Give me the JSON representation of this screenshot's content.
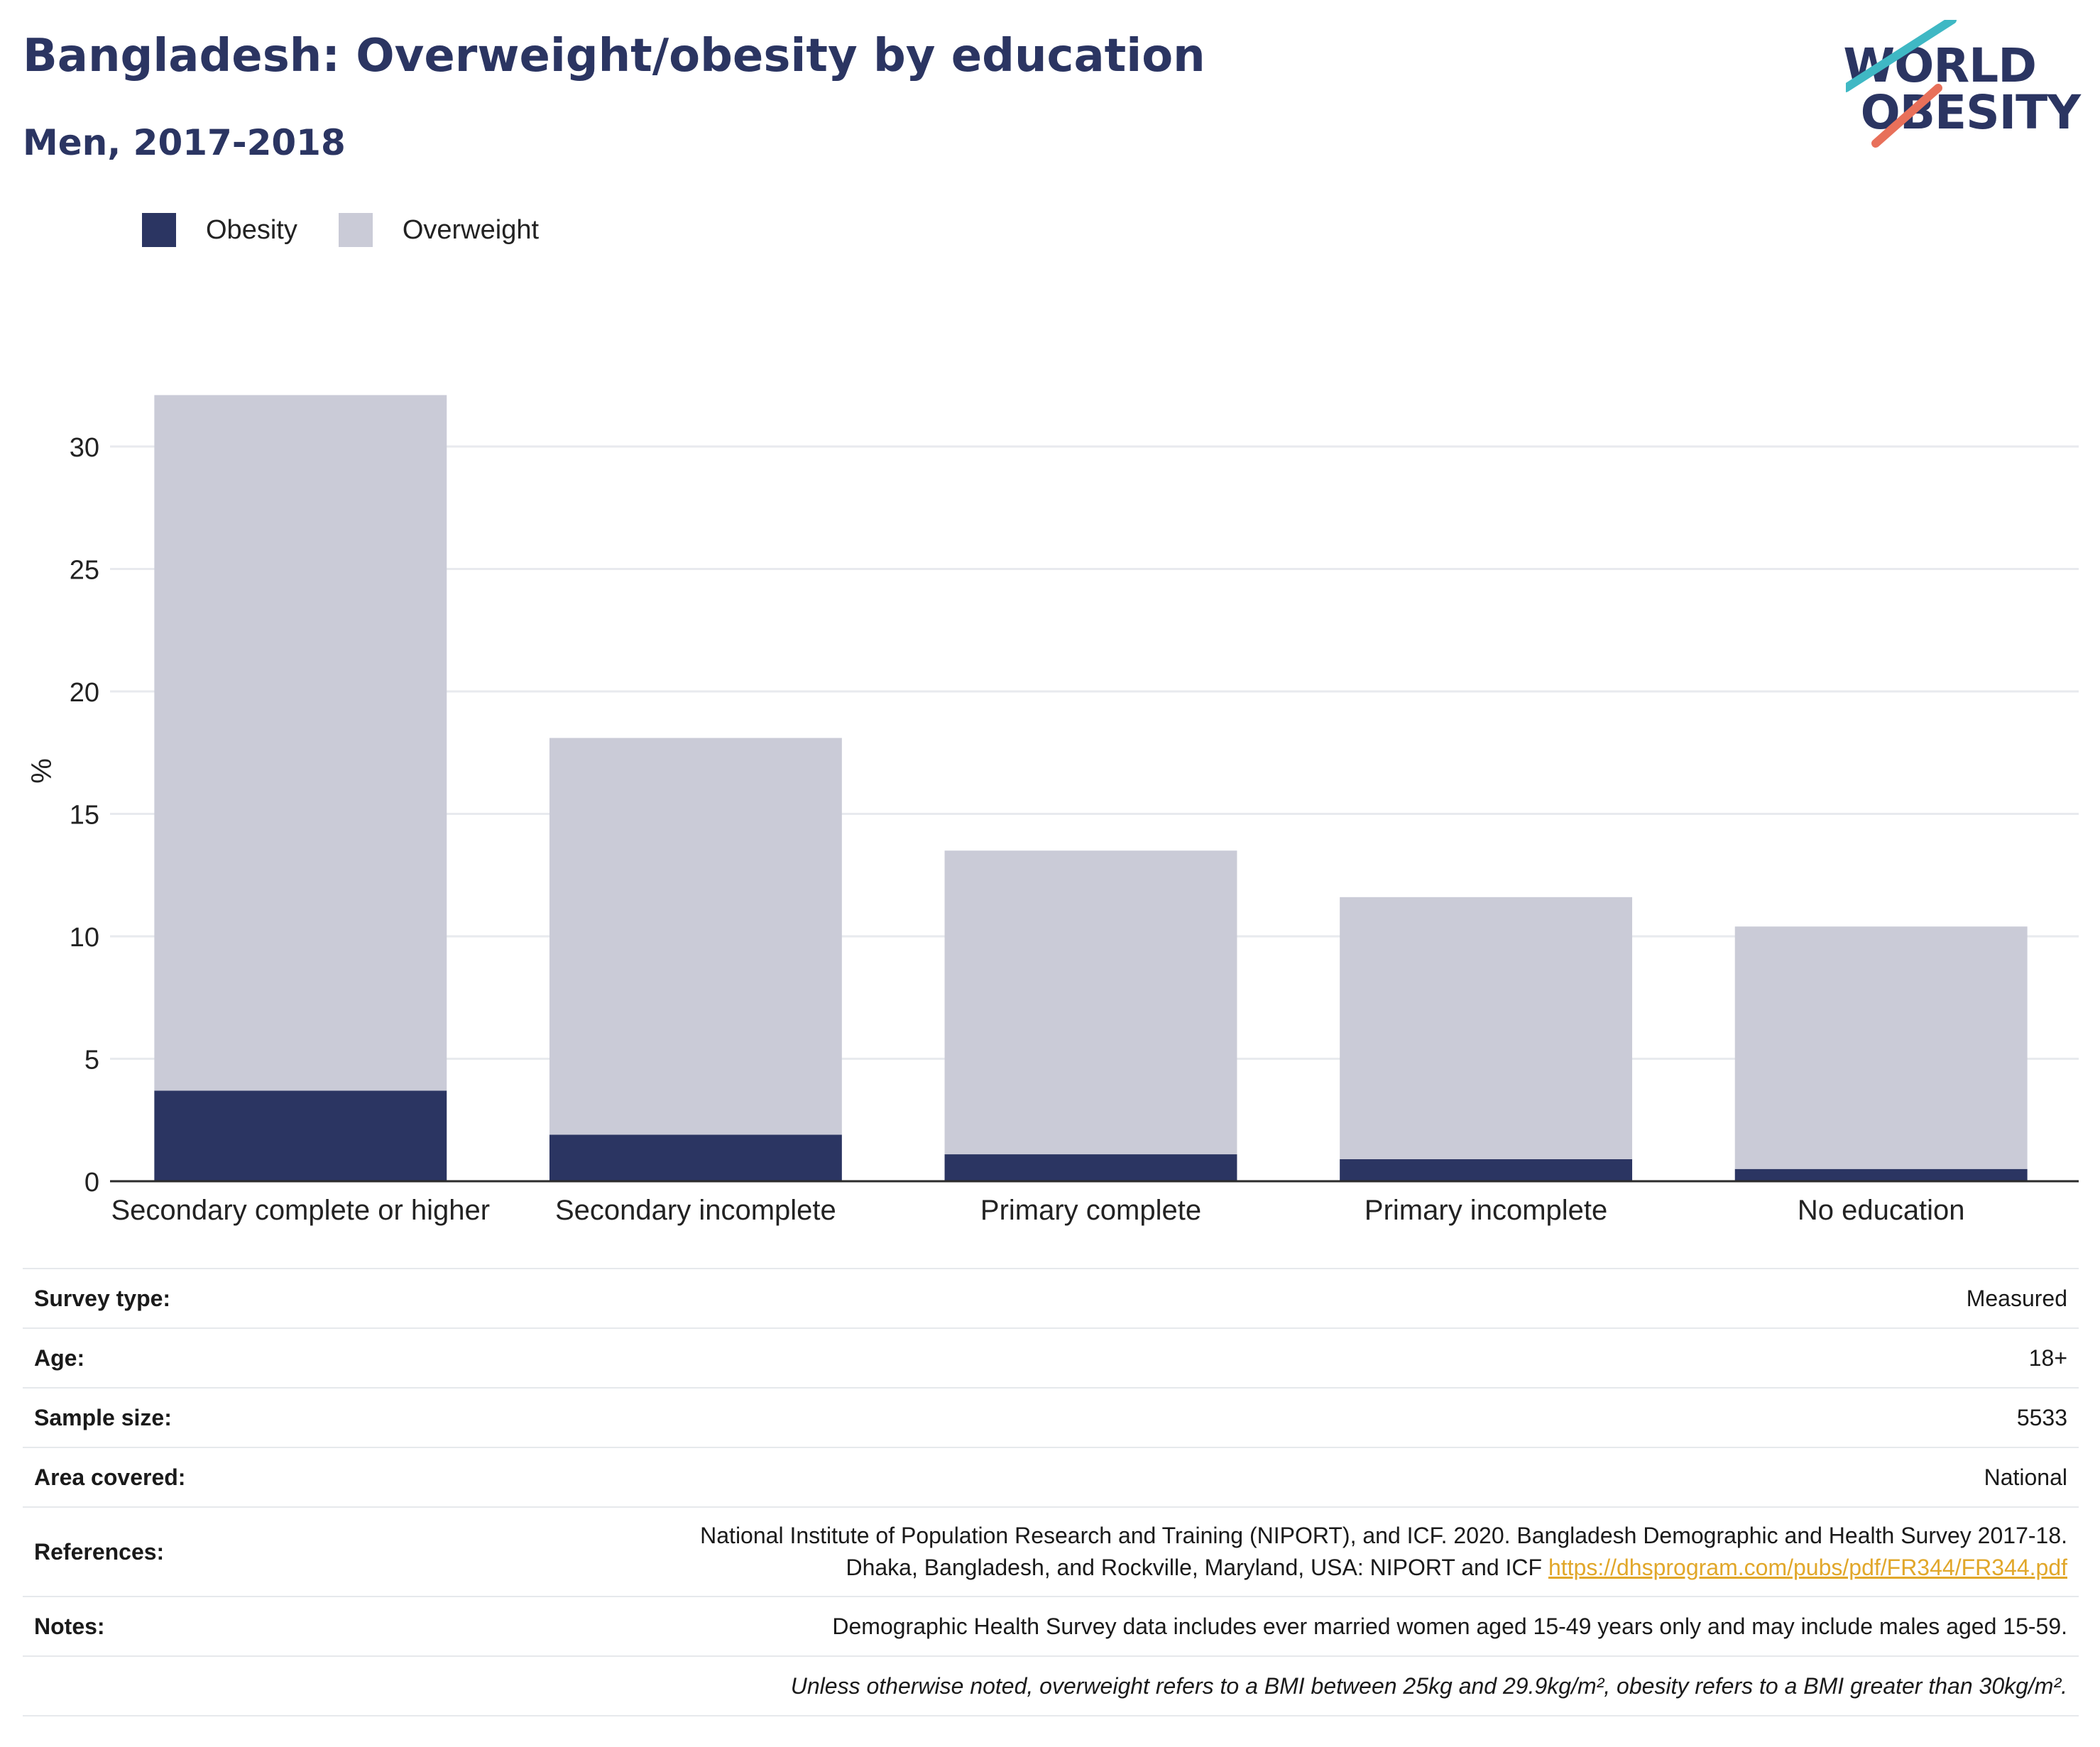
{
  "header": {
    "title": "Bangladesh: Overweight/obesity by education",
    "subtitle": "Men, 2017-2018"
  },
  "logo": {
    "line1": "WORLD",
    "line2": "OBESITY"
  },
  "colors": {
    "obesity": "#2b3562",
    "overweight": "#cacbd7",
    "axis": "#2b2b2b",
    "grid": "#e8eaee",
    "logo_teal": "#3fb8c4",
    "logo_coral": "#e8705a",
    "link": "#e1a72a"
  },
  "chart_data": {
    "type": "bar",
    "stacked": true,
    "title": "Bangladesh: Overweight/obesity by education",
    "subtitle": "Men, 2017-2018",
    "xlabel": "",
    "ylabel": "%",
    "ylim": [
      0,
      32
    ],
    "yticks": [
      0,
      5,
      10,
      15,
      20,
      25,
      30
    ],
    "grid": true,
    "legend_position": "top-left",
    "categories": [
      "Secondary complete or higher",
      "Secondary incomplete",
      "Primary complete",
      "Primary incomplete",
      "No education"
    ],
    "series": [
      {
        "name": "Obesity",
        "values": [
          3.7,
          1.9,
          1.1,
          0.9,
          0.5
        ]
      },
      {
        "name": "Overweight",
        "values": [
          28.4,
          16.2,
          12.4,
          10.7,
          9.9
        ]
      }
    ]
  },
  "info": {
    "rows": [
      {
        "key": "Survey type:",
        "value": "Measured"
      },
      {
        "key": "Age:",
        "value": "18+"
      },
      {
        "key": "Sample size:",
        "value": "5533"
      },
      {
        "key": "Area covered:",
        "value": "National"
      }
    ],
    "references": {
      "key": "References:",
      "line1": "National Institute of Population Research and Training (NIPORT), and ICF. 2020. Bangladesh Demographic and Health Survey 2017-18.",
      "line2": "Dhaka, Bangladesh, and Rockville, Maryland, USA: NIPORT and ICF",
      "link": "https://dhsprogram.com/pubs/pdf/FR344/FR344.pdf"
    },
    "notes": {
      "key": "Notes:",
      "value": "Demographic Health Survey data includes ever married women aged 15-49 years only and may include males aged 15-59.",
      "definition": "Unless otherwise noted, overweight refers to a BMI between 25kg and 29.9kg/m², obesity refers to a BMI greater than 30kg/m²."
    }
  }
}
